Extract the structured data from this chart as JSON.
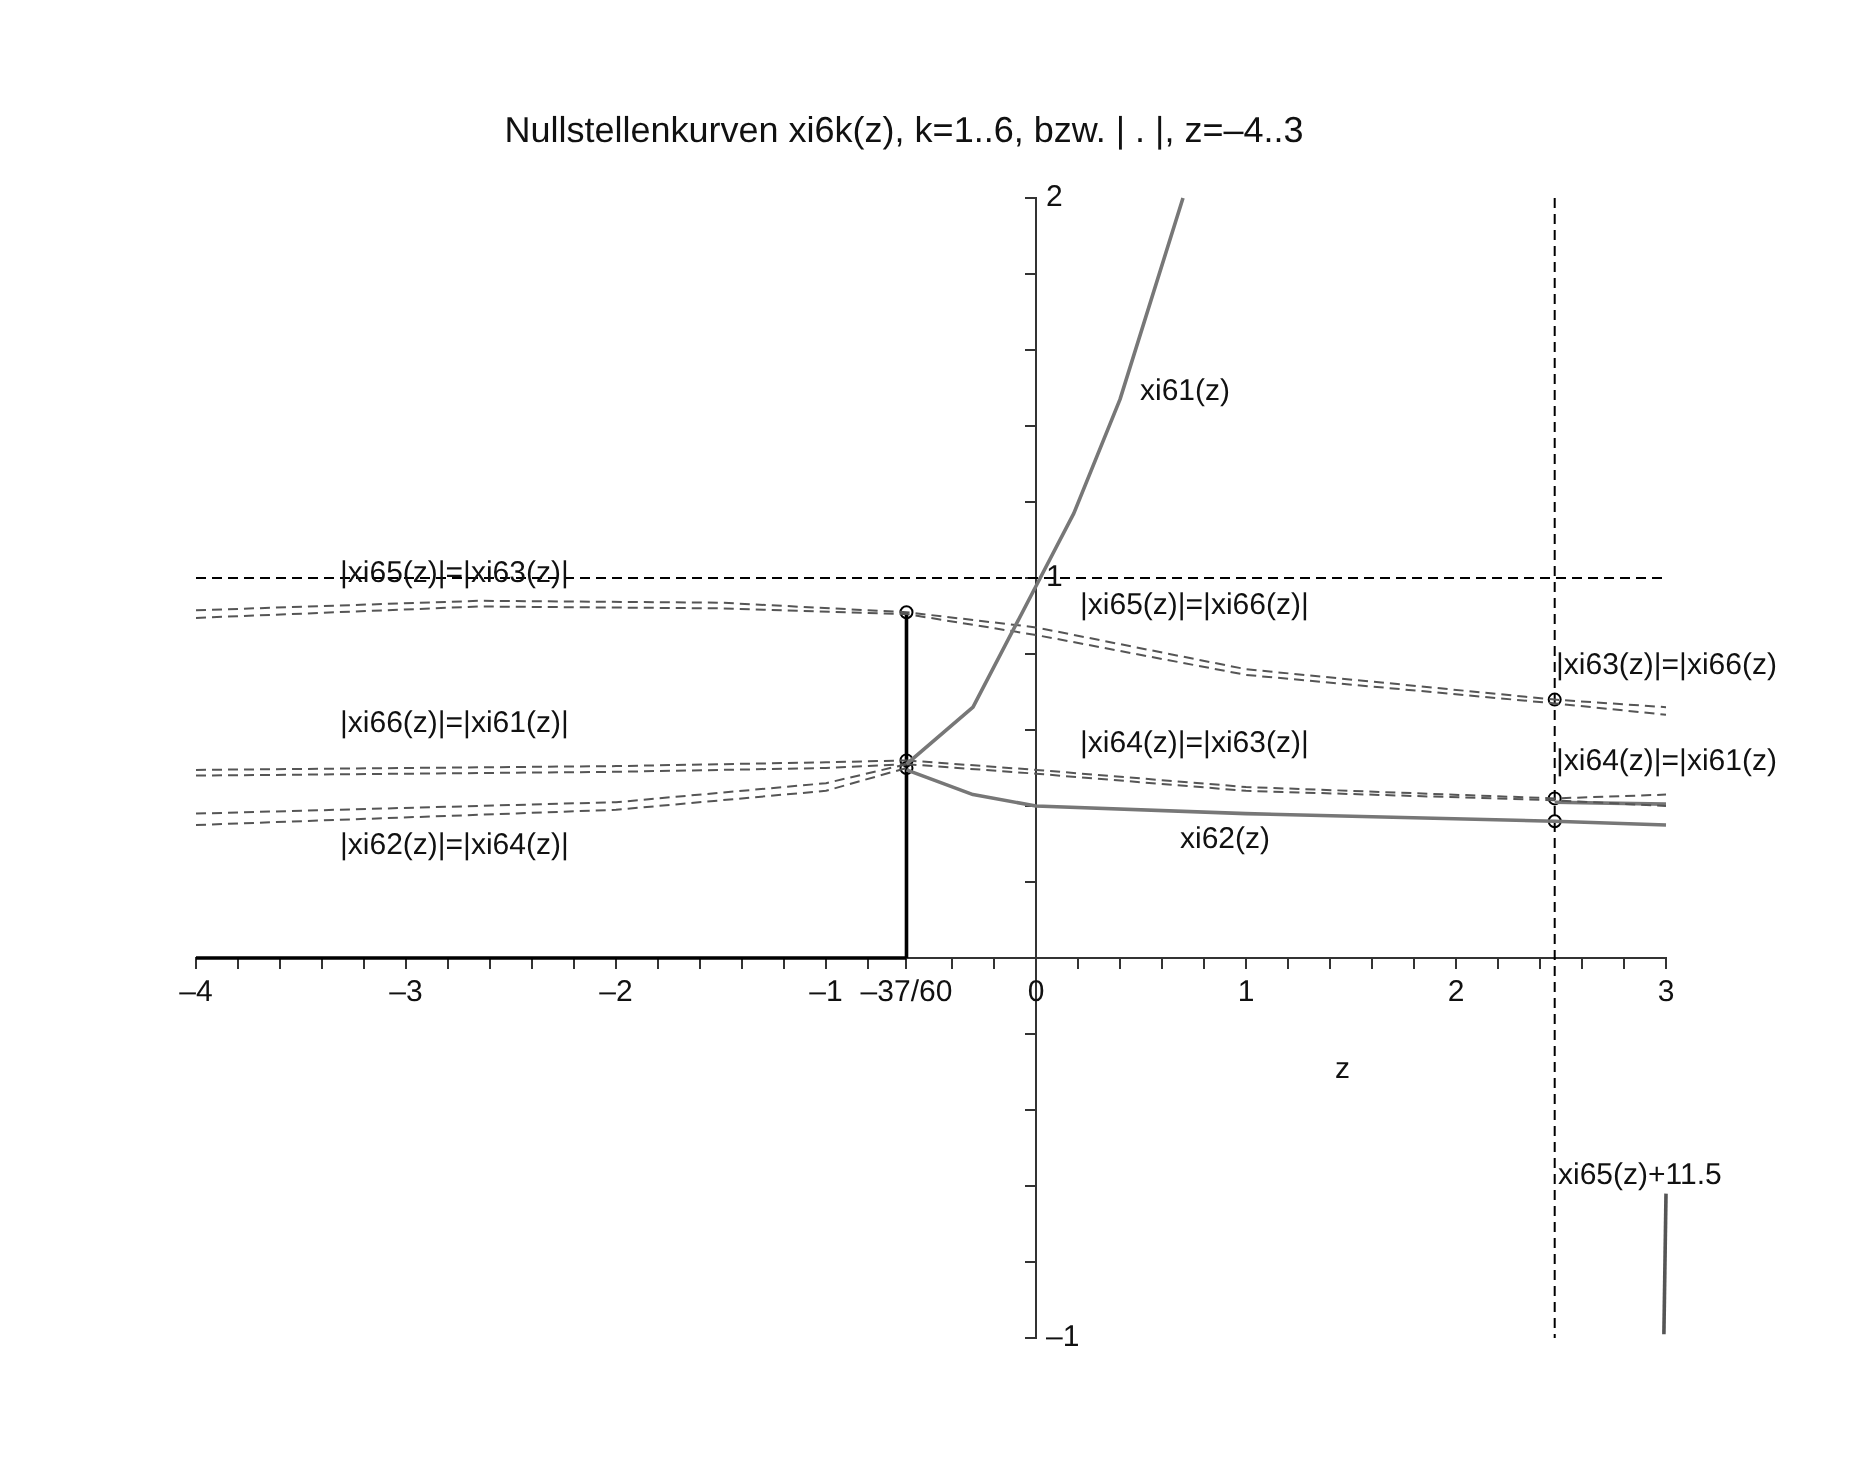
{
  "chart_data": {
    "type": "line",
    "title": "Nullstellenkurven xi6k(z), k=1..6, bzw. | . |, z=–4..3",
    "xlabel": "z",
    "xlim": [
      -4,
      3
    ],
    "ylim": [
      -1,
      2
    ],
    "xticks": [
      {
        "value": -4,
        "label": "–4"
      },
      {
        "value": -3.8,
        "label": null
      },
      {
        "value": -3.6,
        "label": null
      },
      {
        "value": -3.4,
        "label": null
      },
      {
        "value": -3.2,
        "label": null
      },
      {
        "value": -3,
        "label": "–3"
      },
      {
        "value": -2.8,
        "label": null
      },
      {
        "value": -2.6,
        "label": null
      },
      {
        "value": -2.4,
        "label": null
      },
      {
        "value": -2.2,
        "label": null
      },
      {
        "value": -2,
        "label": "–2"
      },
      {
        "value": -1.8,
        "label": null
      },
      {
        "value": -1.6,
        "label": null
      },
      {
        "value": -1.4,
        "label": null
      },
      {
        "value": -1.2,
        "label": null
      },
      {
        "value": -1,
        "label": "–1"
      },
      {
        "value": -0.8,
        "label": null
      },
      {
        "value": -0.6167,
        "label": "–37/60"
      },
      {
        "value": -0.4,
        "label": null
      },
      {
        "value": -0.2,
        "label": null
      },
      0,
      {
        "value": 0.2,
        "label": null
      },
      {
        "value": 0.4,
        "label": null
      },
      {
        "value": 0.6,
        "label": null
      },
      {
        "value": 0.8,
        "label": null
      },
      1,
      {
        "value": 1.2,
        "label": null
      },
      {
        "value": 1.4,
        "label": null
      },
      {
        "value": 1.6,
        "label": null
      },
      {
        "value": 1.8,
        "label": null
      },
      2,
      {
        "value": 2.2,
        "label": null
      },
      {
        "value": 2.4,
        "label": null
      },
      {
        "value": 2.6,
        "label": null
      },
      {
        "value": 2.8,
        "label": null
      },
      3
    ],
    "yticks": [
      {
        "value": -1,
        "label": "–1"
      },
      {
        "value": -0.8,
        "label": null
      },
      {
        "value": -0.6,
        "label": null
      },
      {
        "value": -0.4,
        "label": null
      },
      {
        "value": -0.2,
        "label": null
      },
      {
        "value": 0.2,
        "label": null
      },
      {
        "value": 0.4,
        "label": null
      },
      {
        "value": 0.6,
        "label": null
      },
      {
        "value": 0.8,
        "label": null
      },
      1,
      {
        "value": 1.2,
        "label": null
      },
      {
        "value": 1.4,
        "label": null
      },
      {
        "value": 1.6,
        "label": null
      },
      {
        "value": 1.8,
        "label": null
      },
      2
    ],
    "grid": false,
    "legend": false,
    "series": [
      {
        "type": "line",
        "color": "#777777",
        "line_style": "solid",
        "x": [
          -0.6167,
          -0.3,
          0.02,
          0.18,
          0.4,
          0.7
        ],
        "values": [
          0.51,
          0.66,
          1.0,
          1.17,
          1.47,
          2.0
        ]
      },
      {
        "type": "line",
        "color": "#777777",
        "line_style": "solid",
        "x": [
          -0.6167,
          -0.3,
          0,
          1,
          2.47,
          3
        ],
        "values": [
          0.495,
          0.43,
          0.4,
          0.38,
          0.36,
          0.35
        ]
      },
      {
        "type": "line",
        "color": "#555555",
        "line_style": "dashed",
        "x": [
          -4,
          -2.65,
          -1.5,
          -0.6167,
          0,
          1,
          2.47,
          3
        ],
        "values": [
          0.915,
          0.94,
          0.935,
          0.91,
          0.87,
          0.76,
          0.68,
          0.66
        ]
      },
      {
        "type": "line",
        "color": "#555555",
        "line_style": "dashed",
        "x": [
          -4,
          -2.65,
          -1.5,
          -0.6167,
          0,
          1,
          2.47,
          3
        ],
        "values": [
          0.895,
          0.925,
          0.92,
          0.905,
          0.85,
          0.745,
          0.67,
          0.64
        ]
      },
      {
        "type": "line",
        "color": "#555555",
        "line_style": "dashed",
        "x": [
          -4,
          -2,
          -1,
          -0.6167
        ],
        "values": [
          0.495,
          0.505,
          0.515,
          0.52
        ]
      },
      {
        "type": "line",
        "color": "#555555",
        "line_style": "dashed",
        "x": [
          -4,
          -2,
          -1,
          -0.6167
        ],
        "values": [
          0.48,
          0.49,
          0.5,
          0.51
        ]
      },
      {
        "type": "line",
        "color": "#555555",
        "line_style": "dashed",
        "x": [
          -4,
          -2,
          -1,
          -0.6167
        ],
        "values": [
          0.38,
          0.41,
          0.46,
          0.51
        ]
      },
      {
        "type": "line",
        "color": "#555555",
        "line_style": "dashed",
        "x": [
          -4,
          -2,
          -1,
          -0.6167
        ],
        "values": [
          0.35,
          0.39,
          0.44,
          0.5
        ]
      },
      {
        "type": "line",
        "color": "#555555",
        "line_style": "dashed",
        "x": [
          -0.6167,
          0,
          1,
          2.47,
          3
        ],
        "values": [
          0.52,
          0.495,
          0.45,
          0.42,
          0.43
        ]
      },
      {
        "type": "line",
        "color": "#555555",
        "line_style": "dashed",
        "x": [
          -0.6167,
          0,
          1,
          2.47,
          3
        ],
        "values": [
          0.51,
          0.485,
          0.44,
          0.415,
          0.4
        ]
      },
      {
        "type": "line",
        "color": "#777777",
        "line_style": "solid",
        "x": [
          2.47,
          3
        ],
        "values": [
          0.41,
          0.405
        ]
      },
      {
        "type": "line",
        "color": "#000000",
        "line_style": "solid",
        "x": [
          -0.6167,
          -0.6167
        ],
        "values": [
          0,
          0.91
        ]
      },
      {
        "type": "line",
        "color": "#000000",
        "line_style": "solid",
        "x": [
          -4,
          -0.6167
        ],
        "values": [
          0,
          0
        ]
      },
      {
        "type": "line",
        "color": "#555555",
        "line_style": "solid",
        "x": [
          2.99,
          3.0
        ],
        "values": [
          -0.99,
          -0.62
        ]
      },
      {
        "type": "scatter",
        "color": "#000000",
        "marker": "circle",
        "x": [
          -0.6167,
          -0.6167,
          -0.6167,
          2.47,
          2.47,
          2.47
        ],
        "values": [
          0.91,
          0.52,
          0.5,
          0.68,
          0.42,
          0.36
        ]
      }
    ],
    "ref_lines": [
      {
        "axis": "y",
        "value": 1,
        "color": "#000000",
        "line_style": "dashed"
      },
      {
        "axis": "x",
        "value": 2.47,
        "color": "#000000",
        "line_style": "dashed"
      }
    ],
    "annotations": [
      "|xi65(z)|=|xi63(z)|",
      "|xi66(z)|=|xi61(z)|",
      "|xi62(z)|=|xi64(z)|",
      "|xi65(z)|=|xi66(z)|",
      "|xi64(z)|=|xi63(z)|",
      "xi62(z)",
      "xi61(z)",
      "|xi63(z)|=|xi66(z)",
      "|xi64(z)|=|xi61(z)",
      "xi65(z)+11.5"
    ]
  }
}
